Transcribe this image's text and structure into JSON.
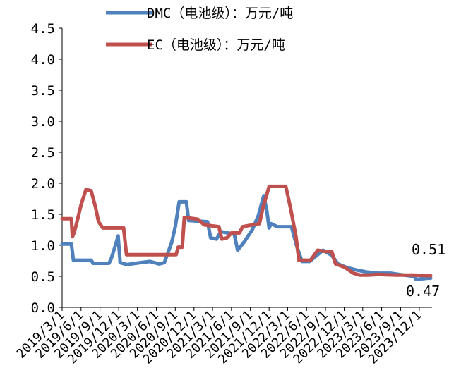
{
  "chart_data": {
    "type": "line",
    "title": "",
    "xlabel": "",
    "ylabel": "",
    "ylim": [
      0,
      4.5
    ],
    "y_ticks": [
      "0.0",
      "0.5",
      "1.0",
      "1.5",
      "2.0",
      "2.5",
      "3.0",
      "3.5",
      "4.0",
      "4.5"
    ],
    "x_range": [
      "2019/3/1",
      "2024/2/1"
    ],
    "x_ticks": [
      "2019/3/1",
      "2019/6/1",
      "2019/9/1",
      "2019/12/1",
      "2020/3/1",
      "2020/6/1",
      "2020/9/1",
      "2020/12/1",
      "2021/3/1",
      "2021/6/1",
      "2021/9/1",
      "2021/12/1",
      "2022/3/1",
      "2022/6/1",
      "2022/9/1",
      "2022/12/1",
      "2023/3/1",
      "2023/6/1",
      "2023/9/1",
      "2023/12/1"
    ],
    "legend_position": "top",
    "grid": false,
    "series": [
      {
        "name": "DMC（电池级）：万元/吨",
        "color": "#4F81BD",
        "points": [
          [
            "2019/3/1",
            1.02
          ],
          [
            "2019/4/15",
            1.02
          ],
          [
            "2019/4/25",
            0.76
          ],
          [
            "2019/7/20",
            0.76
          ],
          [
            "2019/7/30",
            0.71
          ],
          [
            "2019/10/15",
            0.71
          ],
          [
            "2019/10/25",
            0.78
          ],
          [
            "2019/11/20",
            1.05
          ],
          [
            "2019/11/28",
            1.15
          ],
          [
            "2019/12/8",
            0.72
          ],
          [
            "2020/1/10",
            0.69
          ],
          [
            "2020/3/15",
            0.72
          ],
          [
            "2020/5/1",
            0.74
          ],
          [
            "2020/6/15",
            0.7
          ],
          [
            "2020/7/10",
            0.72
          ],
          [
            "2020/8/15",
            1.05
          ],
          [
            "2020/9/1",
            1.3
          ],
          [
            "2020/9/20",
            1.7
          ],
          [
            "2020/10/25",
            1.7
          ],
          [
            "2020/11/5",
            1.4
          ],
          [
            "2021/2/5",
            1.38
          ],
          [
            "2021/2/20",
            1.12
          ],
          [
            "2021/3/20",
            1.1
          ],
          [
            "2021/4/10",
            1.22
          ],
          [
            "2021/6/15",
            1.18
          ],
          [
            "2021/7/1",
            0.92
          ],
          [
            "2021/7/15",
            0.98
          ],
          [
            "2021/8/1",
            1.05
          ],
          [
            "2021/9/10",
            1.25
          ],
          [
            "2021/10/10",
            1.48
          ],
          [
            "2021/11/5",
            1.8
          ],
          [
            "2021/11/20",
            1.55
          ],
          [
            "2021/12/1",
            1.28
          ],
          [
            "2021/12/10",
            1.35
          ],
          [
            "2022/1/10",
            1.3
          ],
          [
            "2022/3/20",
            1.3
          ],
          [
            "2022/4/15",
            0.98
          ],
          [
            "2022/5/10",
            0.74
          ],
          [
            "2022/6/15",
            0.74
          ],
          [
            "2022/7/15",
            0.82
          ],
          [
            "2022/8/20",
            0.92
          ],
          [
            "2022/10/1",
            0.84
          ],
          [
            "2022/11/1",
            0.7
          ],
          [
            "2022/12/15",
            0.64
          ],
          [
            "2023/2/1",
            0.6
          ],
          [
            "2023/3/20",
            0.57
          ],
          [
            "2023/5/15",
            0.55
          ],
          [
            "2023/7/15",
            0.55
          ],
          [
            "2023/9/15",
            0.52
          ],
          [
            "2023/11/5",
            0.5
          ],
          [
            "2023/11/15",
            0.45
          ],
          [
            "2024/1/10",
            0.47
          ],
          [
            "2024/1/25",
            0.47
          ]
        ]
      },
      {
        "name": "EC（电池级）：万元/吨",
        "color": "#C0504D",
        "points": [
          [
            "2019/3/1",
            1.43
          ],
          [
            "2019/4/15",
            1.43
          ],
          [
            "2019/4/20",
            1.14
          ],
          [
            "2019/4/28",
            1.2
          ],
          [
            "2019/5/10",
            1.35
          ],
          [
            "2019/6/1",
            1.65
          ],
          [
            "2019/6/25",
            1.9
          ],
          [
            "2019/7/20",
            1.88
          ],
          [
            "2019/8/10",
            1.62
          ],
          [
            "2019/8/25",
            1.38
          ],
          [
            "2019/9/15",
            1.28
          ],
          [
            "2019/12/25",
            1.28
          ],
          [
            "2020/1/8",
            0.85
          ],
          [
            "2020/9/5",
            0.85
          ],
          [
            "2020/9/15",
            0.97
          ],
          [
            "2020/10/5",
            0.97
          ],
          [
            "2020/10/15",
            1.45
          ],
          [
            "2020/12/20",
            1.42
          ],
          [
            "2021/1/20",
            1.33
          ],
          [
            "2021/4/1",
            1.3
          ],
          [
            "2021/4/15",
            1.1
          ],
          [
            "2021/5/10",
            1.12
          ],
          [
            "2021/6/1",
            1.2
          ],
          [
            "2021/7/10",
            1.2
          ],
          [
            "2021/7/25",
            1.3
          ],
          [
            "2021/10/15",
            1.35
          ],
          [
            "2021/11/1",
            1.6
          ],
          [
            "2021/12/1",
            1.95
          ],
          [
            "2022/2/20",
            1.95
          ],
          [
            "2022/3/15",
            1.6
          ],
          [
            "2022/4/10",
            1.15
          ],
          [
            "2022/4/25",
            0.76
          ],
          [
            "2022/6/20",
            0.76
          ],
          [
            "2022/7/10",
            0.85
          ],
          [
            "2022/7/25",
            0.92
          ],
          [
            "2022/9/1",
            0.9
          ],
          [
            "2022/10/1",
            0.9
          ],
          [
            "2022/10/20",
            0.7
          ],
          [
            "2022/12/1",
            0.65
          ],
          [
            "2023/1/15",
            0.55
          ],
          [
            "2023/2/15",
            0.52
          ],
          [
            "2023/3/25",
            0.52
          ],
          [
            "2023/5/15",
            0.53
          ],
          [
            "2023/8/15",
            0.52
          ],
          [
            "2023/11/1",
            0.52
          ],
          [
            "2024/1/25",
            0.51
          ]
        ]
      }
    ],
    "annotations": [
      "0.51",
      "0.47"
    ]
  }
}
